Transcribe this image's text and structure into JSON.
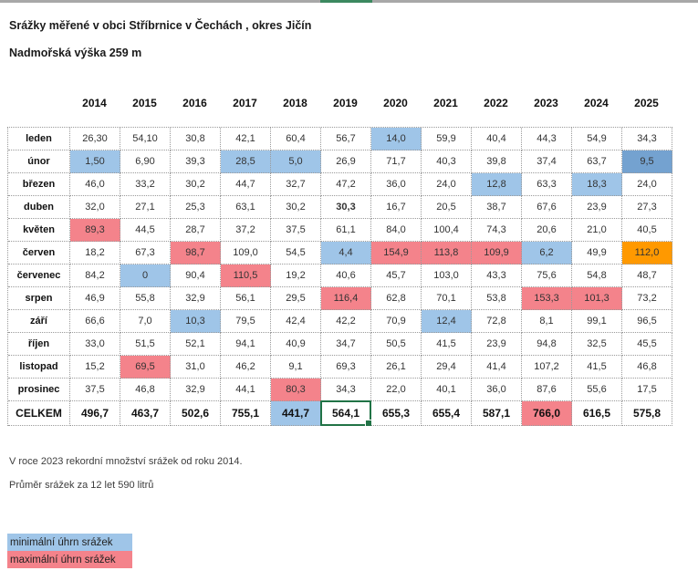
{
  "page": {
    "title": "Srážky měřené v obci Stříbrnice v Čechách , okres Jičín",
    "subtitle": "Nadmořská výška 259 m",
    "note1": "V roce 2023 rekordní množství srážek od roku 2014.",
    "note2": "Průměr srážek za 12 let 590 litrů"
  },
  "colors": {
    "min_highlight": "#9fc5e8",
    "min_dark_highlight": "#74a2d0",
    "max_highlight": "#f4838b",
    "hot_highlight": "#ff9900",
    "selection_green": "#217346",
    "topbar_gray": "#a8a8a8",
    "topbar_green": "#3c8960"
  },
  "table": {
    "years": [
      "2014",
      "2015",
      "2016",
      "2017",
      "2018",
      "2019",
      "2020",
      "2021",
      "2022",
      "2023",
      "2024",
      "2025"
    ],
    "rows": [
      {
        "label": "leden",
        "values": [
          "26,30",
          "54,10",
          "30,8",
          "42,1",
          "60,4",
          "56,7",
          "14,0",
          "59,9",
          "40,4",
          "44,3",
          "54,9",
          "34,3"
        ],
        "marks": [
          "",
          "",
          "",
          "",
          "",
          "",
          "min",
          "",
          "",
          "",
          "",
          ""
        ]
      },
      {
        "label": "únor",
        "values": [
          "1,50",
          "6,90",
          "39,3",
          "28,5",
          "5,0",
          "26,9",
          "71,7",
          "40,3",
          "39,8",
          "37,4",
          "63,7",
          "9,5"
        ],
        "marks": [
          "min",
          "",
          "",
          "min",
          "min",
          "",
          "",
          "",
          "",
          "",
          "",
          "min2"
        ]
      },
      {
        "label": "březen",
        "values": [
          "46,0",
          "33,2",
          "30,2",
          "44,7",
          "32,7",
          "47,2",
          "36,0",
          "24,0",
          "12,8",
          "63,3",
          "18,3",
          "24,0"
        ],
        "marks": [
          "",
          "",
          "",
          "",
          "",
          "",
          "",
          "",
          "min",
          "",
          "min",
          ""
        ]
      },
      {
        "label": "duben",
        "values": [
          "32,0",
          "27,1",
          "25,3",
          "63,1",
          "30,2",
          "30,3",
          "16,7",
          "20,5",
          "38,7",
          "67,6",
          "23,9",
          "27,3"
        ],
        "marks": [
          "",
          "",
          "",
          "",
          "",
          "",
          "",
          "",
          "",
          "",
          "",
          ""
        ],
        "bolds": [
          5
        ]
      },
      {
        "label": "květen",
        "values": [
          "89,3",
          "44,5",
          "28,7",
          "37,2",
          "37,5",
          "61,1",
          "84,0",
          "100,4",
          "74,3",
          "20,6",
          "21,0",
          "40,5"
        ],
        "marks": [
          "max",
          "",
          "",
          "",
          "",
          "",
          "",
          "",
          "",
          "",
          "",
          ""
        ]
      },
      {
        "label": "červen",
        "values": [
          "18,2",
          "67,3",
          "98,7",
          "109,0",
          "54,5",
          "4,4",
          "154,9",
          "113,8",
          "109,9",
          "6,2",
          "49,9",
          "112,0"
        ],
        "marks": [
          "",
          "",
          "max",
          "",
          "",
          "min",
          "max",
          "max",
          "max",
          "min",
          "",
          "hot"
        ]
      },
      {
        "label": "červenec",
        "values": [
          "84,2",
          "0",
          "90,4",
          "110,5",
          "19,2",
          "40,6",
          "45,7",
          "103,0",
          "43,3",
          "75,6",
          "54,8",
          "48,7"
        ],
        "marks": [
          "",
          "min",
          "",
          "max",
          "",
          "",
          "",
          "",
          "",
          "",
          "",
          ""
        ]
      },
      {
        "label": "srpen",
        "values": [
          "46,9",
          "55,8",
          "32,9",
          "56,1",
          "29,5",
          "116,4",
          "62,8",
          "70,1",
          "53,8",
          "153,3",
          "101,3",
          "73,2"
        ],
        "marks": [
          "",
          "",
          "",
          "",
          "",
          "max",
          "",
          "",
          "",
          "max",
          "max",
          ""
        ]
      },
      {
        "label": "září",
        "values": [
          "66,6",
          "7,0",
          "10,3",
          "79,5",
          "42,4",
          "42,2",
          "70,9",
          "12,4",
          "72,8",
          "8,1",
          "99,1",
          "96,5"
        ],
        "marks": [
          "",
          "",
          "min",
          "",
          "",
          "",
          "",
          "min",
          "",
          "",
          "",
          ""
        ]
      },
      {
        "label": "říjen",
        "values": [
          "33,0",
          "51,5",
          "52,1",
          "94,1",
          "40,9",
          "34,7",
          "50,5",
          "41,5",
          "23,9",
          "94,8",
          "32,5",
          "45,5"
        ],
        "marks": [
          "",
          "",
          "",
          "",
          "",
          "",
          "",
          "",
          "",
          "",
          "",
          ""
        ]
      },
      {
        "label": "listopad",
        "values": [
          "15,2",
          "69,5",
          "31,0",
          "46,2",
          "9,1",
          "69,3",
          "26,1",
          "29,4",
          "41,4",
          "107,2",
          "41,5",
          "46,8"
        ],
        "marks": [
          "",
          "max",
          "",
          "",
          "",
          "",
          "",
          "",
          "",
          "",
          "",
          ""
        ]
      },
      {
        "label": "prosinec",
        "values": [
          "37,5",
          "46,8",
          "32,9",
          "44,1",
          "80,3",
          "34,3",
          "22,0",
          "40,1",
          "36,0",
          "87,6",
          "55,6",
          "17,5"
        ],
        "marks": [
          "",
          "",
          "",
          "",
          "max",
          "",
          "",
          "",
          "",
          "",
          "",
          ""
        ]
      }
    ],
    "total": {
      "label": "CELKEM",
      "values": [
        "496,7",
        "463,7",
        "502,6",
        "755,1",
        "441,7",
        "564,1",
        "655,3",
        "655,4",
        "587,1",
        "766,0",
        "616,5",
        "575,8"
      ],
      "marks": [
        "",
        "",
        "",
        "",
        "min",
        "",
        "",
        "",
        "",
        "max",
        "",
        ""
      ],
      "selected_index": 5
    }
  },
  "legend": [
    {
      "label": "minimální úhrn srážek",
      "mark": "min"
    },
    {
      "label": "maximální úhrn srážek",
      "mark": "max"
    }
  ]
}
